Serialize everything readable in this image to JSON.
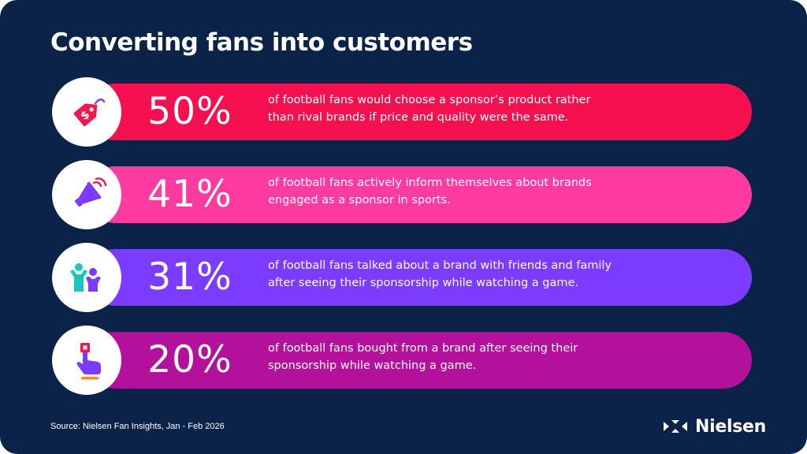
{
  "title": "Converting fans into customers",
  "colors": {
    "background": "#0b2348",
    "row_1": "#f5114f",
    "row_2": "#ff3aa1",
    "row_3": "#7b3cff",
    "row_4": "#b3119c",
    "icon_accent_red": "#f2154e",
    "icon_accent_purple": "#7a3bff",
    "icon_accent_teal": "#1ac6be",
    "icon_accent_orange": "#ff8a2a"
  },
  "stats": [
    {
      "percent": "50%",
      "value": 50,
      "icon": "price-tag-icon",
      "line1": "of football fans would choose a sponsor’s product rather",
      "line2": "than rival brands if price and quality were the same."
    },
    {
      "percent": "41%",
      "value": 41,
      "icon": "megaphone-icon",
      "line1": "of football fans actively inform themselves about brands",
      "line2": "engaged as a sponsor in sports."
    },
    {
      "percent": "31%",
      "value": 31,
      "icon": "people-icon",
      "line1": "of football fans talked about a brand with friends and family",
      "line2": "after seeing their sponsorship while watching a game."
    },
    {
      "percent": "20%",
      "value": 20,
      "icon": "hand-tap-icon",
      "line1": "of football fans bought from a brand after seeing their",
      "line2": "sponsorship while watching a game."
    }
  ],
  "source": "Source: Nielsen Fan Insights, Jan - Feb 2026",
  "logo_text": "Nielsen"
}
